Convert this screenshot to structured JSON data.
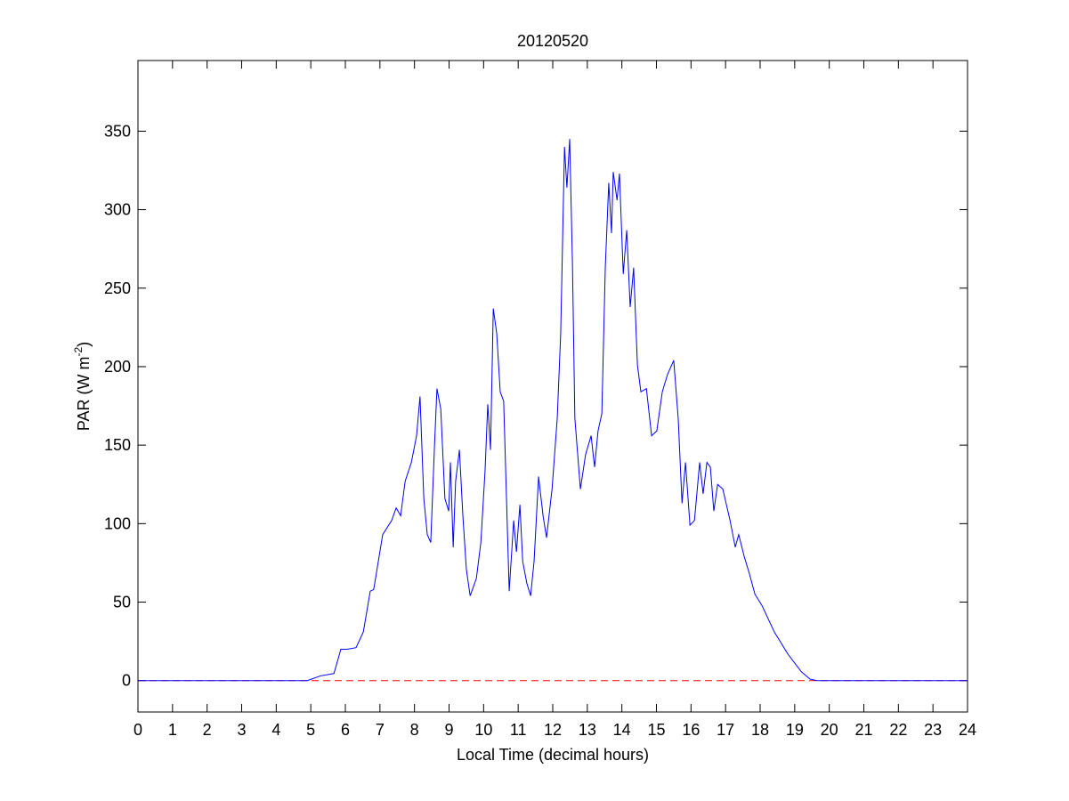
{
  "chart_data": {
    "type": "line",
    "title": "20120520",
    "x_label": "Local Time (decimal hours)",
    "y_label_parts": [
      "PAR (W m",
      "-2",
      ")"
    ],
    "xlim": [
      0,
      24
    ],
    "ylim": [
      -20,
      395
    ],
    "xticks": [
      0,
      1,
      2,
      3,
      4,
      5,
      6,
      7,
      8,
      9,
      10,
      11,
      12,
      13,
      14,
      15,
      16,
      17,
      18,
      19,
      20,
      21,
      22,
      23,
      24
    ],
    "yticks": [
      0,
      50,
      100,
      150,
      200,
      250,
      300,
      350
    ],
    "box": true,
    "hline": {
      "y": 0,
      "color": "#ff0000",
      "style": "dashed"
    },
    "series": [
      {
        "color": "#0000ff",
        "x": [
          0,
          4.9,
          5.28,
          5.67,
          5.87,
          6.05,
          6.31,
          6.52,
          6.72,
          6.82,
          7.08,
          7.34,
          7.47,
          7.6,
          7.73,
          7.91,
          8.06,
          8.16,
          8.27,
          8.37,
          8.47,
          8.58,
          8.65,
          8.76,
          8.88,
          8.99,
          9.04,
          9.12,
          9.19,
          9.3,
          9.4,
          9.5,
          9.61,
          9.79,
          9.92,
          10.04,
          10.12,
          10.2,
          10.28,
          10.38,
          10.48,
          10.58,
          10.74,
          10.87,
          10.95,
          11.05,
          11.13,
          11.25,
          11.36,
          11.46,
          11.59,
          11.72,
          11.82,
          11.98,
          12.13,
          12.23,
          12.34,
          12.41,
          12.49,
          12.57,
          12.64,
          12.8,
          12.95,
          13.11,
          13.21,
          13.31,
          13.42,
          13.52,
          13.62,
          13.7,
          13.75,
          13.86,
          13.93,
          14.04,
          14.14,
          14.24,
          14.34,
          14.45,
          14.55,
          14.71,
          14.86,
          15.01,
          15.17,
          15.32,
          15.5,
          15.63,
          15.74,
          15.84,
          15.97,
          16.1,
          16.25,
          16.35,
          16.46,
          16.56,
          16.66,
          16.77,
          16.92,
          17.13,
          17.28,
          17.38,
          17.54,
          17.69,
          17.85,
          18.05,
          18.41,
          18.8,
          19.19,
          19.44,
          19.65,
          24
        ],
        "values": [
          0,
          0,
          3,
          4.5,
          20,
          20,
          21,
          31,
          57,
          58,
          93,
          102,
          110,
          105,
          127,
          139,
          156,
          181,
          116,
          93,
          88,
          150,
          186,
          173,
          116,
          108,
          139,
          85,
          127,
          147,
          105,
          71,
          54,
          65,
          88,
          133,
          176,
          147,
          237,
          221,
          184,
          178,
          57,
          102,
          82,
          112,
          76,
          62,
          54,
          76,
          130,
          105,
          91,
          122,
          167,
          221,
          340,
          314,
          345,
          266,
          167,
          122,
          144,
          156,
          136,
          159,
          170,
          263,
          317,
          285,
          324,
          306,
          323,
          259,
          287,
          238,
          263,
          201,
          184,
          186,
          156,
          159,
          184,
          195,
          204,
          167,
          113,
          139,
          99,
          102,
          139,
          119,
          139,
          136,
          108,
          125,
          122,
          102,
          85,
          93,
          79,
          68,
          55,
          48,
          31,
          17,
          5.7,
          1,
          0,
          0
        ]
      }
    ]
  }
}
